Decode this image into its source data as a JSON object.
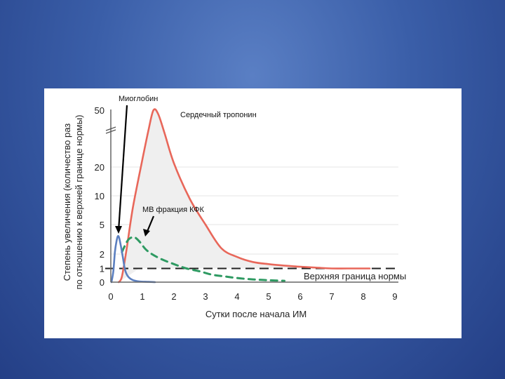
{
  "chart_data": {
    "type": "line",
    "xlabel": "Сутки после начала ИМ",
    "ylabel_line1": "Степень увеличения (количество раз",
    "ylabel_line2": "по отношению к верхней границе нормы)",
    "xlim": [
      0,
      9
    ],
    "x_ticks": [
      0,
      1,
      2,
      3,
      4,
      5,
      6,
      7,
      8,
      9
    ],
    "y_ticks": [
      0,
      1,
      2,
      5,
      10,
      20,
      50
    ],
    "y_scale": "broken",
    "reference_line": {
      "y": 1,
      "label": "Верхняя граница нормы"
    },
    "series": [
      {
        "name": "Сердечный тропонин",
        "color": "#e8675a",
        "style": "solid",
        "x": [
          0.25,
          0.35,
          0.5,
          0.7,
          1.0,
          1.2,
          1.35,
          1.5,
          1.7,
          2.0,
          2.5,
          3.0,
          3.5,
          4.0,
          4.5,
          5.0,
          5.5,
          6.0,
          6.5,
          7.0,
          7.5,
          8.2
        ],
        "y": [
          0,
          0.4,
          2.5,
          8,
          24,
          40,
          50,
          48,
          38,
          22,
          9.5,
          5,
          2.6,
          1.8,
          1.45,
          1.3,
          1.2,
          1.12,
          1.06,
          1.0,
          1.0,
          1.0
        ]
      },
      {
        "name": "МВ фракция КФК",
        "color": "#2e9a62",
        "style": "dashed",
        "x": [
          0.35,
          0.5,
          0.6,
          0.75,
          0.9,
          1.1,
          1.3,
          1.6,
          2.0,
          2.4,
          2.8,
          3.2,
          3.6,
          4.0,
          4.5,
          5.0,
          5.5
        ],
        "y": [
          2.2,
          3.2,
          3.6,
          3.7,
          3.3,
          2.5,
          2.0,
          1.65,
          1.3,
          1.0,
          0.8,
          0.55,
          0.42,
          0.3,
          0.2,
          0.14,
          0.1
        ]
      },
      {
        "name": "Миоглобин",
        "color": "#5b7fc0",
        "style": "solid",
        "x": [
          0.02,
          0.08,
          0.13,
          0.18,
          0.22,
          0.26,
          0.32,
          0.38,
          0.45,
          0.55,
          0.7,
          0.9,
          1.2,
          1.4
        ],
        "y": [
          0,
          0.8,
          2.2,
          3.3,
          3.8,
          3.7,
          2.8,
          1.8,
          0.9,
          0.4,
          0.15,
          0.05,
          0.02,
          0
        ]
      }
    ]
  },
  "annotations": {
    "myoglobin": "Миоглобин",
    "troponin": "Сердечный тропонин",
    "ckmb": "МВ фракция КФК"
  }
}
